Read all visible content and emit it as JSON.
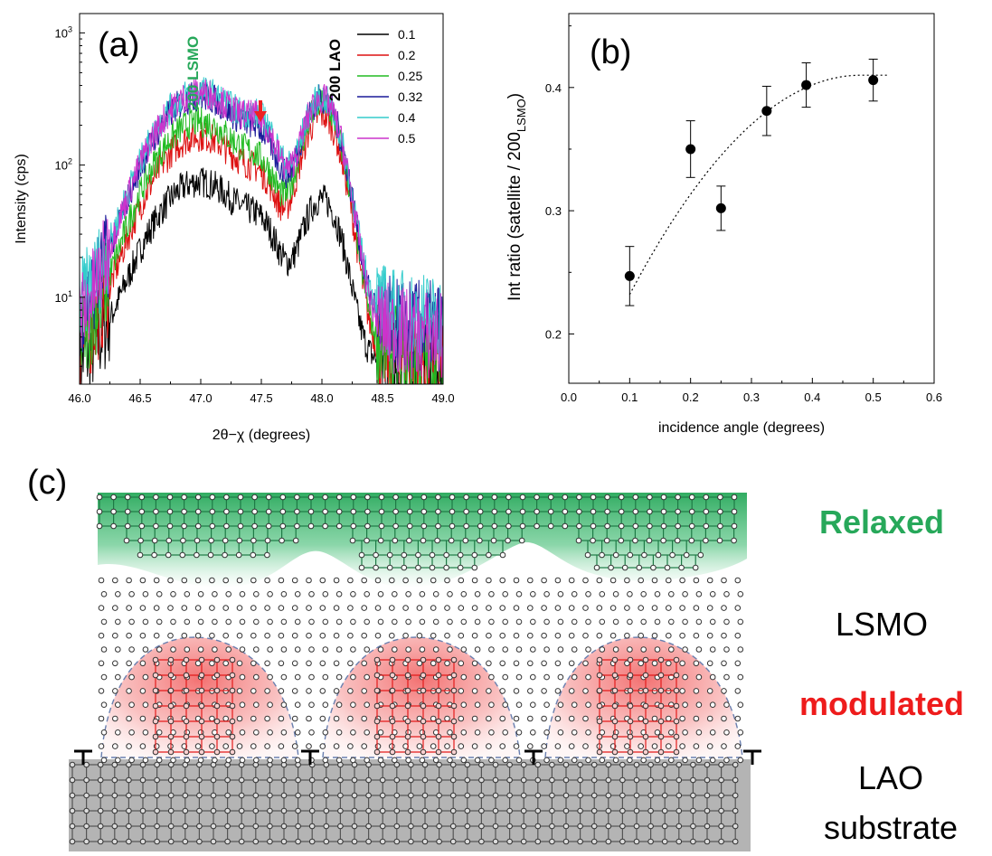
{
  "panel_a": {
    "label": "(a)",
    "peak_lsmo": "200 LSMO",
    "peak_lao": "200 LAO",
    "xlabel": "2θ−χ (degrees)",
    "ylabel": "Intensity (cps)"
  },
  "panel_b": {
    "label": "(b)",
    "ylabel_main": "Int ratio (satellite / 200",
    "ylabel_sub": "LSMO",
    "ylabel_close": ")",
    "xlabel": "incidence angle (degrees)"
  },
  "panel_c": {
    "label": "(c)",
    "relaxed": "Relaxed",
    "lsmo": "LSMO",
    "modulated": "modulated",
    "lao": "LAO",
    "substrate": "substrate"
  },
  "colors": {
    "relaxed_green": "#27a85a",
    "modulated_red": "#ee1c1c",
    "substrate_gray": "#b4b4b4",
    "arrow_red": "#ee2222"
  },
  "chart_data": [
    {
      "type": "line",
      "xlim": [
        46.0,
        49.0
      ],
      "x_ticks": [
        "46.0",
        "46.5",
        "47.0",
        "47.5",
        "48.0",
        "48.5",
        "49.0"
      ],
      "y_scale": "log",
      "ylim": [
        2.2,
        1400
      ],
      "y_tick_labels": [
        {
          "base": "10",
          "exp": "1",
          "value": 10
        },
        {
          "base": "10",
          "exp": "2",
          "value": 100
        },
        {
          "base": "10",
          "exp": "3",
          "value": 1000
        }
      ],
      "legend_position": "top-right",
      "annotations": [
        "200 LSMO",
        "200 LAO",
        "red arrow at 47.5"
      ],
      "series": [
        {
          "name": "0.1",
          "color": "#000000",
          "peak_lsmo": 55,
          "shoulder": 27,
          "valley": 20,
          "peak_lao": 50,
          "background": 3.0
        },
        {
          "name": "0.2",
          "color": "#dd1111",
          "peak_lsmo": 125,
          "shoulder": 62,
          "valley": 45,
          "peak_lao": 230,
          "background": 3.3
        },
        {
          "name": "0.25",
          "color": "#22bb22",
          "peak_lsmo": 160,
          "shoulder": 78,
          "valley": 60,
          "peak_lao": 280,
          "background": 3.6
        },
        {
          "name": "0.32",
          "color": "#1a1a99",
          "peak_lsmo": 250,
          "shoulder": 135,
          "valley": 100,
          "peak_lao": 300,
          "background": 6.0
        },
        {
          "name": "0.4",
          "color": "#33cccc",
          "peak_lsmo": 270,
          "shoulder": 195,
          "valley": 115,
          "peak_lao": 300,
          "background": 7.0
        },
        {
          "name": "0.5",
          "color": "#cc33cc",
          "peak_lsmo": 265,
          "shoulder": 180,
          "valley": 110,
          "peak_lao": 300,
          "background": 5.0
        }
      ]
    },
    {
      "type": "scatter",
      "xlim": [
        0.0,
        0.6
      ],
      "ylim": [
        0.16,
        0.46
      ],
      "x_ticks": [
        "0.0",
        "0.1",
        "0.2",
        "0.3",
        "0.4",
        "0.5",
        "0.6"
      ],
      "y_ticks": [
        "0.2",
        "0.3",
        "0.4"
      ],
      "points": [
        {
          "x": 0.1,
          "y": 0.247,
          "err": 0.024
        },
        {
          "x": 0.2,
          "y": 0.35,
          "err": 0.023
        },
        {
          "x": 0.25,
          "y": 0.302,
          "err": 0.018
        },
        {
          "x": 0.325,
          "y": 0.381,
          "err": 0.02
        },
        {
          "x": 0.39,
          "y": 0.402,
          "err": 0.018
        },
        {
          "x": 0.5,
          "y": 0.406,
          "err": 0.017
        }
      ],
      "fit_curve": {
        "style": "dotted",
        "x_range": [
          0.1,
          0.525
        ],
        "y_start": 0.232,
        "y_plateau": 0.41,
        "x_plateau": 0.48
      }
    }
  ]
}
